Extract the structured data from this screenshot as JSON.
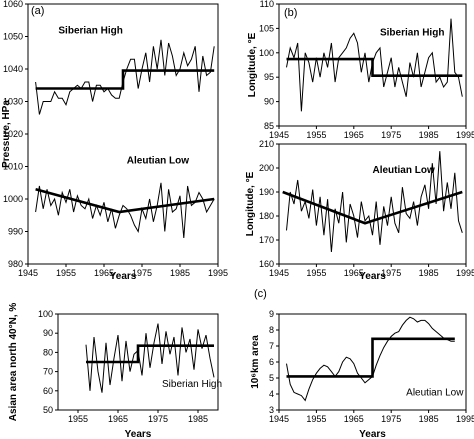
{
  "figure": {
    "panel_labels": [
      "(a)",
      "(b)",
      "(c)"
    ]
  },
  "chart_data": [
    {
      "id": "a",
      "type": "line",
      "panel_label": "(a)",
      "xlabel": "Years",
      "ylabel": "Pressure, HPa",
      "xlim": [
        1945,
        1995
      ],
      "ylim": [
        980,
        1060
      ],
      "xticks": [
        1945,
        1955,
        1965,
        1975,
        1985,
        1995
      ],
      "yticks": [
        980,
        990,
        1000,
        1010,
        1020,
        1030,
        1040,
        1050,
        1060
      ],
      "grid": false,
      "annotations": [
        {
          "text": "Siberian High",
          "x": 1953,
          "y": 1051,
          "bold": true
        },
        {
          "text": "Aleutian Low",
          "x": 1971,
          "y": 1011,
          "bold": true
        }
      ],
      "series": [
        {
          "x": [
            1947,
            1948,
            1949,
            1950,
            1951,
            1952,
            1953,
            1954,
            1955,
            1956,
            1957,
            1958,
            1959,
            1960,
            1961,
            1962,
            1963,
            1964,
            1965,
            1966,
            1967,
            1968,
            1969,
            1970,
            1971,
            1972,
            1973,
            1974,
            1975,
            1976,
            1977,
            1978,
            1979,
            1980,
            1981,
            1982,
            1983,
            1984,
            1985,
            1986,
            1987,
            1988,
            1989,
            1990,
            1991,
            1992,
            1993,
            1994
          ],
          "y": [
            1036,
            1026,
            1030,
            1030,
            1030,
            1033,
            1031,
            1031,
            1029,
            1033,
            1034,
            1035,
            1034,
            1036,
            1036,
            1030,
            1035,
            1035,
            1033,
            1034,
            1032,
            1031,
            1031,
            1036,
            1040,
            1043,
            1043,
            1034,
            1040,
            1045,
            1036,
            1047,
            1040,
            1049,
            1038,
            1048,
            1044,
            1038,
            1040,
            1045,
            1041,
            1043,
            1047,
            1033,
            1044,
            1038,
            1039,
            1047
          ]
        },
        {
          "x": [
            1947,
            1948,
            1949,
            1950,
            1951,
            1952,
            1953,
            1954,
            1955,
            1956,
            1957,
            1958,
            1959,
            1960,
            1961,
            1962,
            1963,
            1964,
            1965,
            1966,
            1967,
            1968,
            1969,
            1970,
            1971,
            1972,
            1973,
            1974,
            1975,
            1976,
            1977,
            1978,
            1979,
            1980,
            1981,
            1982,
            1983,
            1984,
            1985,
            1986,
            1987,
            1988,
            1989,
            1990,
            1991,
            1992,
            1993,
            1994
          ],
          "y": [
            996,
            1004,
            997,
            1003,
            998,
            1000,
            995,
            1002,
            999,
            1003,
            996,
            1001,
            998,
            997,
            1000,
            994,
            998,
            995,
            999,
            993,
            997,
            991,
            995,
            998,
            997,
            995,
            992,
            990,
            997,
            994,
            1000,
            993,
            998,
            1005,
            990,
            1003,
            996,
            997,
            1001,
            988,
            1004,
            998,
            999,
            1002,
            1000,
            996,
            998,
            1000
          ]
        },
        {
          "name": "trend-siberian-high",
          "x": [
            1947,
            1970,
            1970,
            1994
          ],
          "y": [
            1034,
            1034,
            1039.5,
            1039.5
          ]
        },
        {
          "name": "trend-aleutian-low",
          "x": [
            1947,
            1969,
            1994
          ],
          "y": [
            1003,
            996,
            1000
          ]
        }
      ]
    },
    {
      "id": "b-top",
      "type": "line",
      "panel_label": "(b)",
      "xlabel": "",
      "ylabel": "Longitude, °E",
      "xlim": [
        1945,
        1995
      ],
      "ylim": [
        85,
        110
      ],
      "xticks": [
        1945,
        1955,
        1965,
        1975,
        1985,
        1995
      ],
      "yticks": [
        85,
        90,
        95,
        100,
        105,
        110
      ],
      "grid": false,
      "annotations": [
        {
          "text": "Siberian High",
          "x": 1972,
          "y": 103.5,
          "bold": true
        }
      ],
      "series": [
        {
          "x": [
            1947,
            1948,
            1949,
            1950,
            1951,
            1952,
            1953,
            1954,
            1955,
            1956,
            1957,
            1958,
            1959,
            1960,
            1961,
            1962,
            1963,
            1964,
            1965,
            1966,
            1967,
            1968,
            1969,
            1970,
            1971,
            1972,
            1973,
            1974,
            1975,
            1976,
            1977,
            1978,
            1979,
            1980,
            1981,
            1982,
            1983,
            1984,
            1985,
            1986,
            1987,
            1988,
            1989,
            1990,
            1991,
            1992,
            1993,
            1994
          ],
          "y": [
            97,
            101,
            99,
            102,
            88,
            100,
            98,
            94,
            99,
            95,
            100,
            97,
            102,
            94,
            99,
            100,
            101,
            103,
            104,
            102,
            96,
            100,
            94,
            98,
            100,
            101,
            93,
            96,
            99,
            93,
            97,
            94,
            91,
            98,
            95,
            100,
            93,
            96,
            99,
            100,
            94,
            95,
            93,
            94,
            107,
            96,
            95,
            91
          ]
        },
        {
          "name": "trend",
          "x": [
            1947,
            1970,
            1970,
            1994
          ],
          "y": [
            98.7,
            98.7,
            95.3,
            95.3
          ]
        }
      ]
    },
    {
      "id": "b-bottom",
      "type": "line",
      "panel_label": "",
      "xlabel": "Years",
      "ylabel": "Longitude, °E",
      "xlim": [
        1945,
        1995
      ],
      "ylim": [
        160,
        210
      ],
      "xticks": [
        1945,
        1955,
        1965,
        1975,
        1985,
        1995
      ],
      "yticks": [
        160,
        170,
        180,
        190,
        200,
        210
      ],
      "grid": false,
      "annotations": [
        {
          "text": "Aleutian Low",
          "x": 1970,
          "y": 198,
          "bold": true
        }
      ],
      "series": [
        {
          "x": [
            1947,
            1948,
            1949,
            1950,
            1951,
            1952,
            1953,
            1954,
            1955,
            1956,
            1957,
            1958,
            1959,
            1960,
            1961,
            1962,
            1963,
            1964,
            1965,
            1966,
            1967,
            1968,
            1969,
            1970,
            1971,
            1972,
            1973,
            1974,
            1975,
            1976,
            1977,
            1978,
            1979,
            1980,
            1981,
            1982,
            1983,
            1984,
            1985,
            1986,
            1987,
            1988,
            1989,
            1990,
            1991,
            1992,
            1993,
            1994
          ],
          "y": [
            174,
            190,
            185,
            195,
            182,
            186,
            179,
            191,
            176,
            188,
            172,
            187,
            165,
            183,
            177,
            190,
            169,
            185,
            180,
            171,
            186,
            178,
            180,
            172,
            186,
            168,
            184,
            176,
            188,
            177,
            173,
            192,
            181,
            179,
            186,
            176,
            188,
            193,
            183,
            202,
            185,
            207,
            182,
            194,
            183,
            198,
            178,
            173
          ]
        },
        {
          "name": "trend",
          "x": [
            1946,
            1968,
            1994
          ],
          "y": [
            190,
            177,
            190
          ]
        }
      ]
    },
    {
      "id": "c-left",
      "type": "line",
      "panel_label": "",
      "xlabel": "Years",
      "ylabel": "Asian area north 40°N, %",
      "xlim": [
        1950,
        1990
      ],
      "ylim": [
        50,
        100
      ],
      "xticks": [
        1955,
        1965,
        1975,
        1985
      ],
      "yticks": [
        50,
        60,
        70,
        80,
        90,
        100
      ],
      "grid": false,
      "annotations": [
        {
          "text": "Siberian High",
          "x": 1976,
          "y": 62,
          "bold": false
        }
      ],
      "series": [
        {
          "x": [
            1957,
            1958,
            1959,
            1960,
            1961,
            1962,
            1963,
            1964,
            1965,
            1966,
            1967,
            1968,
            1969,
            1970,
            1971,
            1972,
            1973,
            1974,
            1975,
            1976,
            1977,
            1978,
            1979,
            1980,
            1981,
            1982,
            1983,
            1984,
            1985,
            1986,
            1987,
            1988,
            1989
          ],
          "y": [
            84,
            60,
            88,
            70,
            59,
            85,
            63,
            77,
            89,
            65,
            86,
            70,
            79,
            81,
            68,
            90,
            72,
            85,
            95,
            74,
            91,
            79,
            88,
            68,
            93,
            80,
            87,
            71,
            92,
            82,
            89,
            77,
            67
          ]
        },
        {
          "name": "trend",
          "x": [
            1957,
            1970,
            1970,
            1989
          ],
          "y": [
            75,
            75,
            83.5,
            83.5
          ]
        }
      ]
    },
    {
      "id": "c-right",
      "type": "line",
      "panel_label": "(c)",
      "xlabel": "Years",
      "ylabel": "10⁶km area",
      "xlim": [
        1945,
        1995
      ],
      "ylim": [
        3,
        9
      ],
      "xticks": [
        1945,
        1955,
        1965,
        1975,
        1985,
        1995
      ],
      "yticks": [
        3,
        4,
        5,
        6,
        7,
        8,
        9
      ],
      "grid": false,
      "annotations": [
        {
          "text": "Aleutian Low",
          "x": 1979,
          "y": 3.9,
          "bold": false
        }
      ],
      "series": [
        {
          "x": [
            1947,
            1948,
            1949,
            1950,
            1951,
            1952,
            1953,
            1954,
            1955,
            1956,
            1957,
            1958,
            1959,
            1960,
            1961,
            1962,
            1963,
            1964,
            1965,
            1966,
            1967,
            1968,
            1969,
            1970,
            1971,
            1972,
            1973,
            1974,
            1975,
            1976,
            1977,
            1978,
            1979,
            1980,
            1981,
            1982,
            1983,
            1984,
            1985,
            1986,
            1987,
            1988,
            1989,
            1990,
            1991,
            1992
          ],
          "y": [
            5.9,
            4.6,
            4.1,
            4.0,
            3.9,
            3.6,
            4.3,
            4.9,
            5.3,
            5.6,
            5.8,
            5.7,
            5.4,
            5.1,
            5.4,
            6.0,
            6.3,
            6.2,
            5.9,
            5.3,
            5.0,
            4.7,
            4.9,
            5.1,
            5.8,
            6.4,
            6.9,
            7.3,
            7.6,
            7.8,
            7.9,
            8.3,
            8.6,
            8.8,
            8.7,
            8.5,
            8.6,
            8.6,
            8.4,
            8.1,
            7.9,
            7.7,
            7.5,
            7.4,
            7.3,
            7.3
          ]
        },
        {
          "name": "trend",
          "x": [
            1947,
            1970,
            1970,
            1992
          ],
          "y": [
            5.1,
            5.1,
            7.45,
            7.45
          ]
        }
      ]
    }
  ]
}
